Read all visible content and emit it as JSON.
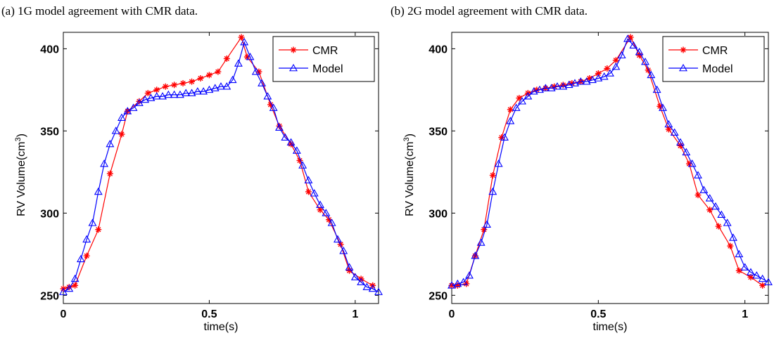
{
  "chart_data": [
    {
      "type": "line",
      "caption": "(a) 1G model agreement with CMR data.",
      "xlabel": "time(s)",
      "ylabel_main": "RV Volume(cm",
      "ylabel_sup": "3",
      "ylabel_close": ")",
      "xlim": [
        0,
        1.08
      ],
      "ylim": [
        245,
        410
      ],
      "xticks": [
        0,
        0.5,
        1
      ],
      "xtick_labels": [
        "0",
        "0.5",
        "1"
      ],
      "yticks": [
        250,
        300,
        350,
        400
      ],
      "ytick_labels": [
        "250",
        "300",
        "350",
        "400"
      ],
      "grid": false,
      "legend_position": "top-right",
      "series": [
        {
          "name": "CMR",
          "color": "#ff0000",
          "marker": "star",
          "x": [
            0,
            0.02,
            0.04,
            0.08,
            0.12,
            0.16,
            0.2,
            0.22,
            0.26,
            0.29,
            0.32,
            0.35,
            0.38,
            0.41,
            0.44,
            0.47,
            0.5,
            0.53,
            0.56,
            0.61,
            0.63,
            0.67,
            0.71,
            0.74,
            0.78,
            0.81,
            0.84,
            0.88,
            0.91,
            0.95,
            0.98,
            1.02,
            1.06
          ],
          "y": [
            254,
            255,
            256,
            274,
            290,
            324,
            348,
            362,
            368,
            373,
            375,
            377,
            378,
            379,
            380,
            382,
            384,
            386,
            394,
            407,
            395,
            386,
            366,
            353,
            342,
            332,
            313,
            302,
            296,
            281,
            265,
            260,
            256
          ]
        },
        {
          "name": "Model",
          "color": "#0000ff",
          "marker": "triangle",
          "x": [
            0,
            0.02,
            0.04,
            0.06,
            0.08,
            0.1,
            0.12,
            0.14,
            0.16,
            0.18,
            0.2,
            0.22,
            0.24,
            0.26,
            0.28,
            0.3,
            0.32,
            0.34,
            0.36,
            0.38,
            0.4,
            0.42,
            0.44,
            0.46,
            0.48,
            0.5,
            0.52,
            0.54,
            0.56,
            0.58,
            0.6,
            0.62,
            0.64,
            0.66,
            0.68,
            0.7,
            0.72,
            0.74,
            0.76,
            0.78,
            0.8,
            0.82,
            0.84,
            0.86,
            0.88,
            0.9,
            0.92,
            0.94,
            0.96,
            0.98,
            1.0,
            1.02,
            1.04,
            1.06,
            1.08
          ],
          "y": [
            252,
            254,
            260,
            272,
            284,
            294,
            313,
            330,
            342,
            350,
            358,
            362,
            364,
            367,
            369,
            370,
            371,
            371,
            372,
            372,
            372,
            373,
            373,
            374,
            374,
            375,
            376,
            377,
            377,
            381,
            391,
            404,
            395,
            386,
            379,
            371,
            364,
            352,
            346,
            343,
            338,
            329,
            320,
            312,
            305,
            300,
            294,
            284,
            277,
            267,
            261,
            258,
            255,
            254,
            252
          ]
        }
      ]
    },
    {
      "type": "line",
      "caption": "(b) 2G model agreement with CMR data.",
      "xlabel": "time(s)",
      "ylabel_main": "RV Volume(cm",
      "ylabel_sup": "3",
      "ylabel_close": ")",
      "xlim": [
        0,
        1.08
      ],
      "ylim": [
        245,
        410
      ],
      "xticks": [
        0,
        0.5,
        1
      ],
      "xtick_labels": [
        "0",
        "0.5",
        "1"
      ],
      "yticks": [
        250,
        300,
        350,
        400
      ],
      "ytick_labels": [
        "250",
        "300",
        "350",
        "400"
      ],
      "grid": false,
      "legend_position": "top-right",
      "series": [
        {
          "name": "CMR",
          "color": "#ff0000",
          "marker": "star",
          "x": [
            0,
            0.02,
            0.05,
            0.08,
            0.11,
            0.14,
            0.17,
            0.2,
            0.23,
            0.26,
            0.29,
            0.32,
            0.35,
            0.38,
            0.41,
            0.44,
            0.47,
            0.5,
            0.53,
            0.56,
            0.61,
            0.64,
            0.67,
            0.71,
            0.74,
            0.78,
            0.81,
            0.84,
            0.88,
            0.91,
            0.95,
            0.98,
            1.02,
            1.06
          ],
          "y": [
            256,
            256,
            257,
            274,
            290,
            323,
            346,
            363,
            370,
            373,
            375,
            376,
            377,
            378,
            379,
            380,
            382,
            385,
            388,
            393,
            407,
            396,
            387,
            365,
            351,
            341,
            330,
            311,
            302,
            292,
            280,
            265,
            261,
            256
          ]
        },
        {
          "name": "Model",
          "color": "#0000ff",
          "marker": "triangle",
          "x": [
            0,
            0.02,
            0.04,
            0.06,
            0.08,
            0.1,
            0.12,
            0.14,
            0.16,
            0.18,
            0.2,
            0.22,
            0.24,
            0.26,
            0.28,
            0.3,
            0.32,
            0.34,
            0.36,
            0.38,
            0.4,
            0.42,
            0.44,
            0.46,
            0.48,
            0.5,
            0.52,
            0.54,
            0.56,
            0.58,
            0.6,
            0.62,
            0.64,
            0.66,
            0.68,
            0.7,
            0.72,
            0.74,
            0.76,
            0.78,
            0.8,
            0.82,
            0.84,
            0.86,
            0.88,
            0.9,
            0.92,
            0.94,
            0.96,
            0.98,
            1.0,
            1.02,
            1.04,
            1.06,
            1.08
          ],
          "y": [
            256,
            257,
            258,
            262,
            274,
            282,
            293,
            313,
            330,
            346,
            356,
            364,
            368,
            371,
            374,
            375,
            376,
            376,
            377,
            377,
            378,
            379,
            380,
            380,
            381,
            382,
            383,
            385,
            389,
            396,
            406,
            402,
            398,
            392,
            384,
            375,
            364,
            354,
            349,
            343,
            337,
            330,
            323,
            314,
            309,
            304,
            299,
            294,
            285,
            275,
            267,
            264,
            262,
            260,
            258
          ]
        }
      ]
    }
  ]
}
